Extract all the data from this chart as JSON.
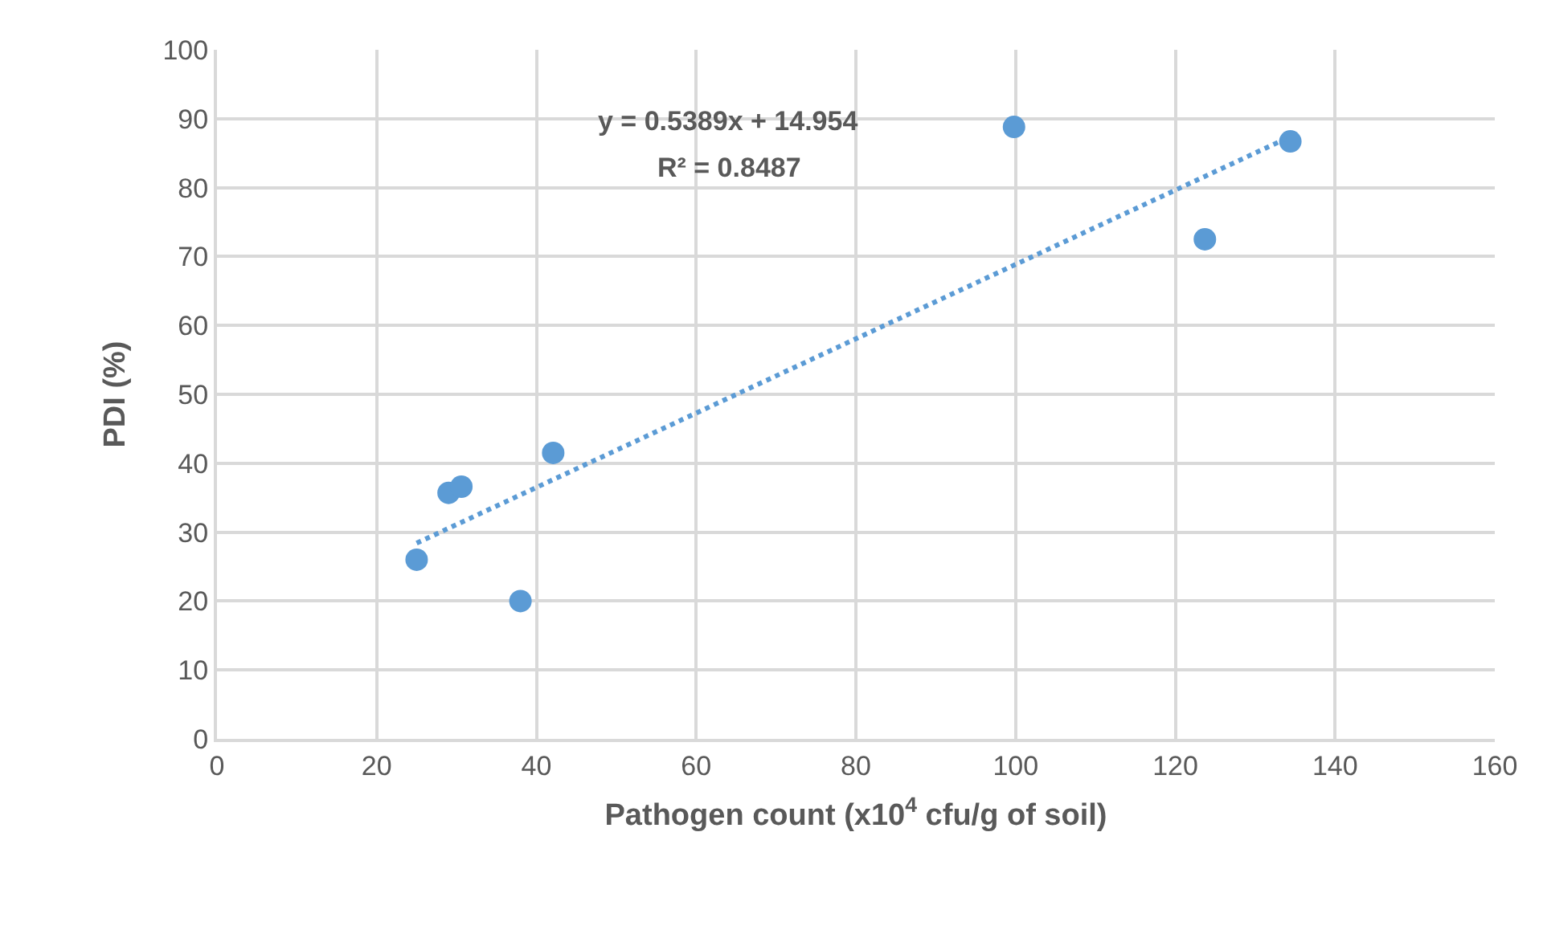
{
  "chart_data": {
    "type": "scatter",
    "xlabel": "Pathogen count (x10$^{4}$ cfu/g of soil)",
    "ylabel": "PDI (%)",
    "xlim": [
      0,
      160
    ],
    "xticks": [
      0,
      20,
      40,
      60,
      80,
      100,
      120,
      140,
      160
    ],
    "ylim": [
      0,
      100
    ],
    "yticks": [
      0,
      10,
      20,
      30,
      40,
      50,
      60,
      70,
      80,
      90,
      100
    ],
    "grid": true,
    "marker": "circle",
    "series": [
      {
        "type": "scatter",
        "color": "#5b9bd5",
        "x": [
          25,
          29,
          30.6,
          38,
          42.1,
          99.8,
          123.7,
          134.4
        ],
        "values": [
          26,
          35.7,
          36.6,
          20,
          41.5,
          88.8,
          72.5,
          86.7
        ]
      },
      {
        "type": "line",
        "color": "#5b9bd5",
        "line_style": "dotted",
        "marker": "none",
        "x": [
          25,
          134.4
        ],
        "values": [
          28.4,
          87.4
        ]
      }
    ],
    "annotations": [
      "y = 0.5389x + 14.954",
      "R² = 0.8487"
    ]
  }
}
